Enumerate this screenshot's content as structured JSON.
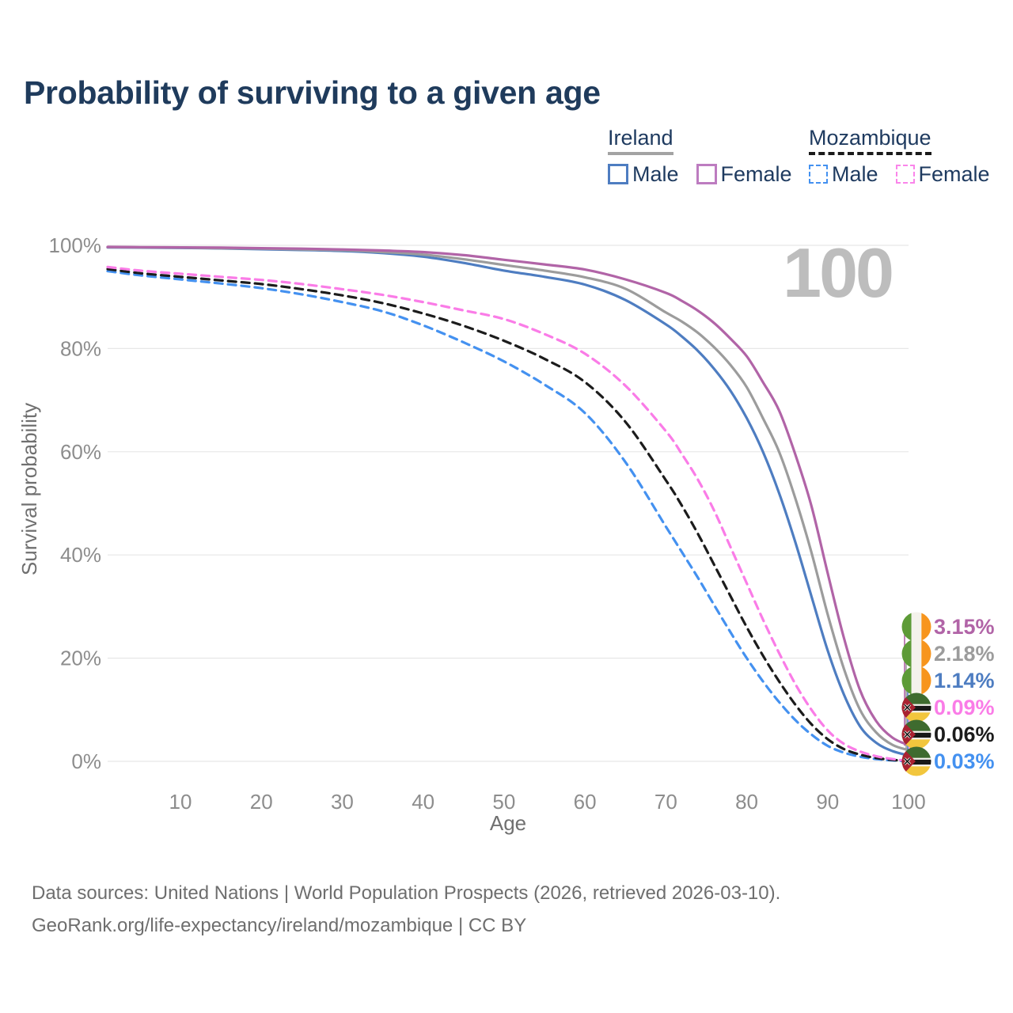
{
  "title": "Probability of surviving to a given age",
  "watermark": "100",
  "legend": {
    "groups": [
      {
        "label": "Ireland",
        "line_style": "solid",
        "underline_color": "#a3a3a3",
        "items": [
          {
            "label": "Male",
            "color": "#4e7dc1"
          },
          {
            "label": "Female",
            "color": "#bd7cc0"
          }
        ]
      },
      {
        "label": "Mozambique",
        "line_style": "dashed",
        "underline_color": "#1a1a1a",
        "items": [
          {
            "label": "Male",
            "color": "#4491f0"
          },
          {
            "label": "Female",
            "color": "#fa85ea"
          }
        ]
      }
    ]
  },
  "axes": {
    "x_title": "Age",
    "y_title": "Survival probability",
    "y_ticks": [
      {
        "label": "100%",
        "value": 100
      },
      {
        "label": "80%",
        "value": 80
      },
      {
        "label": "60%",
        "value": 60
      },
      {
        "label": "40%",
        "value": 40
      },
      {
        "label": "20%",
        "value": 20
      },
      {
        "label": "0%",
        "value": 0
      }
    ],
    "x_ticks": [
      {
        "label": "10",
        "value": 10
      },
      {
        "label": "20",
        "value": 20
      },
      {
        "label": "30",
        "value": 30
      },
      {
        "label": "40",
        "value": 40
      },
      {
        "label": "50",
        "value": 50
      },
      {
        "label": "60",
        "value": 60
      },
      {
        "label": "70",
        "value": 70
      },
      {
        "label": "80",
        "value": 80
      },
      {
        "label": "90",
        "value": 90
      },
      {
        "label": "100",
        "value": 100
      }
    ]
  },
  "end_labels": [
    {
      "series": "ireland_female",
      "flag": "ireland",
      "value": "3.15%",
      "color": "#b164a7"
    },
    {
      "series": "ireland_total",
      "flag": "ireland",
      "value": "2.18%",
      "color": "#9c9c9c"
    },
    {
      "series": "ireland_male",
      "flag": "ireland",
      "value": "1.14%",
      "color": "#4e7dc1"
    },
    {
      "series": "moz_female",
      "flag": "mozambique",
      "value": "0.09%",
      "color": "#fa7ce7"
    },
    {
      "series": "moz_total",
      "flag": "mozambique",
      "value": "0.06%",
      "color": "#1c1c1c"
    },
    {
      "series": "moz_male",
      "flag": "mozambique",
      "value": "0.03%",
      "color": "#4491f0"
    }
  ],
  "footer": {
    "line1": "Data sources: United Nations | World Population Prospects (2026, retrieved 2026-03-10).",
    "line2": "GeoRank.org/life-expectancy/ireland/mozambique | CC BY"
  },
  "chart_data": {
    "type": "line",
    "title": "Probability of surviving to a given age",
    "xlabel": "Age",
    "ylabel": "Survival probability",
    "x_range": [
      1,
      100
    ],
    "ylim_pct": [
      0,
      100
    ],
    "grid": "horizontal",
    "legend_position": "top-right",
    "x": [
      1,
      5,
      10,
      15,
      20,
      25,
      30,
      35,
      40,
      45,
      50,
      55,
      60,
      65,
      70,
      72,
      74,
      76,
      78,
      80,
      82,
      84,
      86,
      88,
      90,
      92,
      94,
      96,
      98,
      100
    ],
    "series": [
      {
        "id": "moz_male",
        "name": "Mozambique Male",
        "country": "Mozambique",
        "sex": "male",
        "line_style": "dashed",
        "color": "#4491f0",
        "end_label": "0.03%",
        "values": [
          95.0,
          94.2,
          93.4,
          92.6,
          91.7,
          90.5,
          89.0,
          87.2,
          84.5,
          81.2,
          77.5,
          73.0,
          67.5,
          58.0,
          45.5,
          40.5,
          35.5,
          30.2,
          25.0,
          20.0,
          15.5,
          11.5,
          8.0,
          5.2,
          3.0,
          1.7,
          0.9,
          0.45,
          0.18,
          0.03
        ]
      },
      {
        "id": "moz_total",
        "name": "Mozambique",
        "country": "Mozambique",
        "sex": "both",
        "line_style": "dashed",
        "color": "#1c1c1c",
        "end_label": "0.06%",
        "values": [
          95.4,
          94.6,
          93.9,
          93.2,
          92.5,
          91.5,
          90.3,
          88.8,
          86.8,
          84.4,
          81.5,
          78.0,
          73.5,
          65.8,
          54.5,
          49.5,
          44.0,
          38.0,
          32.0,
          26.0,
          20.5,
          15.5,
          11.0,
          7.2,
          4.3,
          2.4,
          1.3,
          0.65,
          0.28,
          0.06
        ]
      },
      {
        "id": "moz_female",
        "name": "Mozambique Female",
        "country": "Mozambique",
        "sex": "female",
        "line_style": "dashed",
        "color": "#fa7ce7",
        "end_label": "0.09%",
        "values": [
          95.8,
          95.1,
          94.5,
          93.9,
          93.3,
          92.5,
          91.5,
          90.4,
          89.0,
          87.4,
          85.7,
          82.8,
          79.0,
          72.8,
          64.0,
          59.5,
          54.5,
          48.5,
          41.5,
          34.5,
          27.5,
          21.0,
          15.0,
          10.0,
          6.0,
          3.4,
          1.9,
          1.0,
          0.45,
          0.09
        ]
      },
      {
        "id": "ireland_male",
        "name": "Ireland Male",
        "country": "Ireland",
        "sex": "male",
        "line_style": "solid",
        "color": "#4e7dc1",
        "end_label": "1.14%",
        "values": [
          99.6,
          99.55,
          99.5,
          99.4,
          99.25,
          99.1,
          98.9,
          98.5,
          97.8,
          96.6,
          95.1,
          93.9,
          92.4,
          89.4,
          84.7,
          82.3,
          79.5,
          76.0,
          71.8,
          66.5,
          60.0,
          52.0,
          42.5,
          32.0,
          21.5,
          13.0,
          6.8,
          3.6,
          2.0,
          1.14
        ]
      },
      {
        "id": "ireland_total",
        "name": "Ireland",
        "country": "Ireland",
        "sex": "both",
        "line_style": "solid",
        "color": "#9c9c9c",
        "end_label": "2.18%",
        "values": [
          99.65,
          99.6,
          99.55,
          99.45,
          99.35,
          99.2,
          99.05,
          98.7,
          98.2,
          97.3,
          96.2,
          95.1,
          93.8,
          91.6,
          87.0,
          85.2,
          83.0,
          80.2,
          76.8,
          72.5,
          66.5,
          60.0,
          51.0,
          40.5,
          28.5,
          18.0,
          10.0,
          5.6,
          3.2,
          2.18
        ]
      },
      {
        "id": "ireland_female",
        "name": "Ireland Female",
        "country": "Ireland",
        "sex": "female",
        "line_style": "solid",
        "color": "#b164a7",
        "end_label": "3.15%",
        "values": [
          99.7,
          99.65,
          99.6,
          99.55,
          99.45,
          99.35,
          99.2,
          99.0,
          98.7,
          98.1,
          97.2,
          96.3,
          95.3,
          93.4,
          90.8,
          89.2,
          87.3,
          84.9,
          81.9,
          78.5,
          73.5,
          68.0,
          59.5,
          49.5,
          36.5,
          24.0,
          13.8,
          7.8,
          4.6,
          3.15
        ]
      }
    ]
  }
}
